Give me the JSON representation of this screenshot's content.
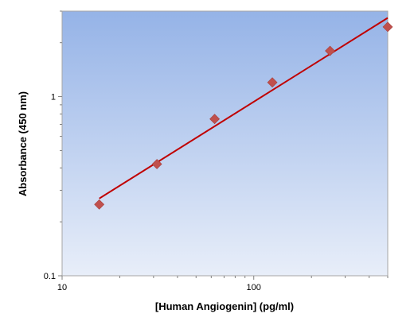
{
  "chart_data": {
    "type": "scatter",
    "title": "",
    "xlabel": "[Human Angiogenin] (pg/ml)",
    "ylabel": "Absorbance (450 nm)",
    "xscale": "log",
    "yscale": "log",
    "xlim": [
      10,
      500
    ],
    "ylim": [
      0.1,
      3
    ],
    "x_ticks": [
      {
        "value": 10,
        "label": "10"
      },
      {
        "value": 100,
        "label": "100"
      }
    ],
    "y_ticks": [
      {
        "value": 0.1,
        "label": "0.1"
      },
      {
        "value": 1,
        "label": "1"
      }
    ],
    "grid": false,
    "legend": "none",
    "series": [
      {
        "kind": "points",
        "marker": "diamond",
        "color": "#c0504d",
        "x": [
          15.625,
          31.25,
          62.5,
          125,
          250,
          500
        ],
        "y": [
          0.25,
          0.42,
          0.75,
          1.2,
          1.8,
          2.45
        ]
      },
      {
        "kind": "fit-line",
        "color": "#c00000",
        "x": [
          15.625,
          500
        ],
        "y": [
          0.27,
          2.75
        ]
      }
    ],
    "plot_background": {
      "top_color": "#95b3e7",
      "bottom_color": "#e8eef9"
    }
  }
}
